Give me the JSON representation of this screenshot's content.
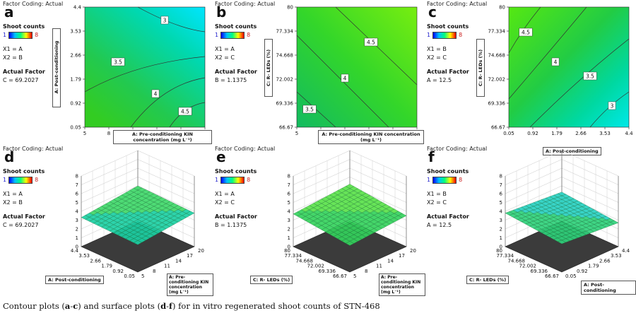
{
  "caption": {
    "pre": "Contour plots (",
    "a": "a",
    "dash1": "-",
    "c": "c",
    "mid": ") and surface plots (",
    "d": "d",
    "dash2": "-",
    "f": "f",
    "post": ") for in vitro regenerated shoot counts of STN-468"
  },
  "panels": [
    {
      "header": "Factor Coding: Actual",
      "letter": "a",
      "legend_title": "Shoot counts",
      "legend_min": "1",
      "legend_max": "8",
      "x1": "X1 = A",
      "x2": "X2 = B",
      "actual_title": "Actual Factor",
      "actual_value": "C = 69.2027"
    },
    {
      "header": "Factor Coding: Actual",
      "letter": "b",
      "legend_title": "Shoot counts",
      "legend_min": "1",
      "legend_max": "8",
      "x1": "X1 = A",
      "x2": "X2 = C",
      "actual_title": "Actual Factor",
      "actual_value": "B = 1.1375"
    },
    {
      "header": "Factor Coding: Actual",
      "letter": "c",
      "legend_title": "Shoot counts",
      "legend_min": "1",
      "legend_max": "8",
      "x1": "X1 = B",
      "x2": "X2 = C",
      "actual_title": "Actual Factor",
      "actual_value": "A = 12.5"
    },
    {
      "header": "Factor Coding: Actual",
      "letter": "d",
      "legend_title": "Shoot counts",
      "legend_min": "1",
      "legend_max": "8",
      "x1": "X1 = A",
      "x2": "X2 = B",
      "actual_title": "Actual Factor",
      "actual_value": "C = 69.2027"
    },
    {
      "header": "Factor Coding: Actual",
      "letter": "e",
      "legend_title": "Shoot counts",
      "legend_min": "1",
      "legend_max": "8",
      "x1": "X1 = A",
      "x2": "X2 = C",
      "actual_title": "Actual Factor",
      "actual_value": "B = 1.1375"
    },
    {
      "header": "Factor Coding: Actual",
      "letter": "f",
      "legend_title": "Shoot counts",
      "legend_min": "1",
      "legend_max": "8",
      "x1": "X1 = B",
      "x2": "X2 = C",
      "actual_title": "Actual Factor",
      "actual_value": "A = 12.5"
    }
  ],
  "chart_data": [
    {
      "type": "contour",
      "panel": "a",
      "xlabel": "A: Pre-conditioning KIN concentration (mg L⁻¹)",
      "ylabel": "A: Post-conditioning",
      "x_ticks": [
        "5",
        "8",
        "11",
        "14",
        "17",
        "20"
      ],
      "y_ticks": [
        "0.05",
        "0.92",
        "1.79",
        "2.66",
        "3.53",
        "4.4"
      ],
      "xlim": [
        5,
        20
      ],
      "ylim": [
        0.05,
        4.4
      ],
      "contour_levels": [
        "3",
        "3.5",
        "4",
        "4.5"
      ],
      "colors": [
        "#00e5ff",
        "#00d9a0",
        "#22c93a",
        "#33cc22"
      ]
    },
    {
      "type": "contour",
      "panel": "b",
      "xlabel": "A: Pre-conditioning KIN concentration (mg L⁻¹)",
      "ylabel": "C: R- LEDs (%)",
      "x_ticks": [
        "5",
        "8",
        "11",
        "14",
        "17",
        "20"
      ],
      "y_ticks": [
        "66.67",
        "69.336",
        "72.002",
        "74.668",
        "77.334",
        "80"
      ],
      "xlim": [
        5,
        20
      ],
      "ylim": [
        66.67,
        80
      ],
      "contour_levels": [
        "3.5",
        "4",
        "4.5"
      ],
      "colors": [
        "#15c060",
        "#44dd22",
        "#66ee11"
      ]
    },
    {
      "type": "contour",
      "panel": "c",
      "xlabel": "A: Post-conditioning",
      "ylabel": "C: R- LEDs (%)",
      "x_ticks": [
        "0.05",
        "0.92",
        "1.79",
        "2.66",
        "3.53",
        "4.4"
      ],
      "y_ticks": [
        "66.67",
        "69.336",
        "72.002",
        "74.668",
        "77.334",
        "80"
      ],
      "xlim": [
        0.05,
        4.4
      ],
      "ylim": [
        66.67,
        80
      ],
      "contour_levels": [
        "4.5",
        "4",
        "3.5",
        "3"
      ],
      "colors": [
        "#55e812",
        "#22cc44",
        "#00d8a0",
        "#00e8e8"
      ]
    },
    {
      "type": "surface",
      "panel": "d",
      "xlabel": "A: Pre-conditioning KIN concentration (mg L⁻¹)",
      "ylabel": "A: Post-conditioning",
      "z_ticks": [
        "0",
        "1",
        "2",
        "3",
        "4",
        "5",
        "6",
        "7",
        "8"
      ],
      "x_ticks": [
        "5",
        "8",
        "11",
        "14",
        "17",
        "20"
      ],
      "y_ticks": [
        "0.05",
        "0.92",
        "1.79",
        "2.66",
        "3.53",
        "4.4"
      ],
      "zlim": [
        0,
        8
      ]
    },
    {
      "type": "surface",
      "panel": "e",
      "xlabel": "A: Pre-conditioning KIN concentration (mg L⁻¹)",
      "ylabel": "C: R- LEDs (%)",
      "z_ticks": [
        "0",
        "1",
        "2",
        "3",
        "4",
        "5",
        "6",
        "7",
        "8"
      ],
      "x_ticks": [
        "5",
        "8",
        "11",
        "14",
        "17",
        "20"
      ],
      "y_ticks": [
        "66.67",
        "69.336",
        "72.002",
        "74.668",
        "77.334",
        "80"
      ],
      "zlim": [
        0,
        8
      ]
    },
    {
      "type": "surface",
      "panel": "f",
      "xlabel": "A: Post-conditioning",
      "ylabel": "C: R- LEDs (%)",
      "z_ticks": [
        "0",
        "1",
        "2",
        "3",
        "4",
        "5",
        "6",
        "7",
        "8"
      ],
      "x_ticks": [
        "0.05",
        "0.92",
        "1.79",
        "2.66",
        "3.53",
        "4.4"
      ],
      "y_ticks": [
        "66.67",
        "69.336",
        "72.002",
        "74.668",
        "77.334",
        "80"
      ],
      "zlim": [
        0,
        8
      ]
    }
  ]
}
